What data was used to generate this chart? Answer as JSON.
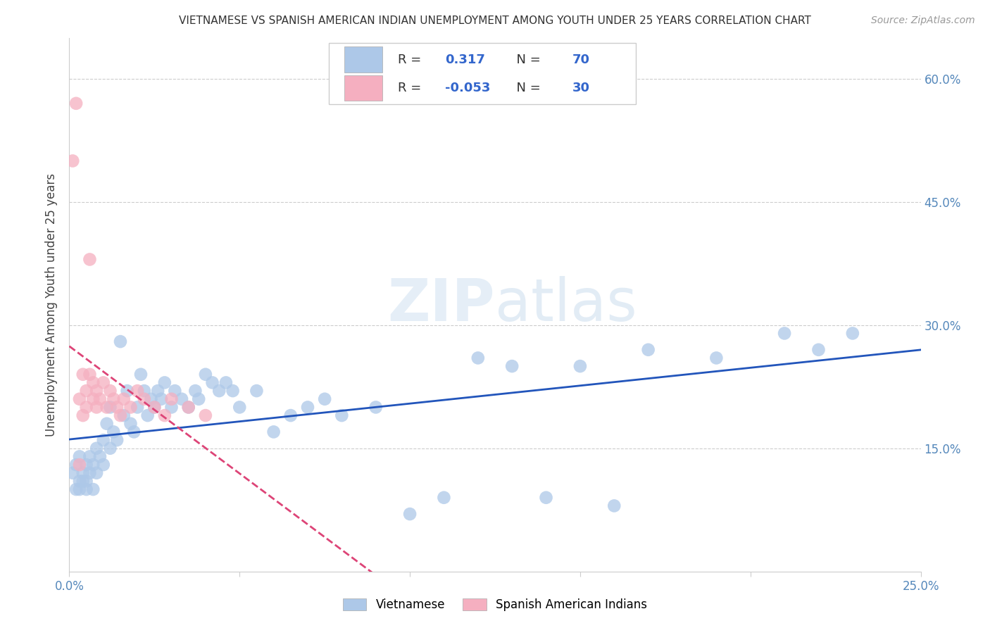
{
  "title": "VIETNAMESE VS SPANISH AMERICAN INDIAN UNEMPLOYMENT AMONG YOUTH UNDER 25 YEARS CORRELATION CHART",
  "source": "Source: ZipAtlas.com",
  "ylabel": "Unemployment Among Youth under 25 years",
  "xlim": [
    0.0,
    0.25
  ],
  "ylim": [
    0.0,
    0.65
  ],
  "blue_R": 0.317,
  "blue_N": 70,
  "pink_R": -0.053,
  "pink_N": 30,
  "blue_color": "#adc8e8",
  "pink_color": "#f5afc0",
  "blue_line_color": "#2255bb",
  "pink_line_color": "#dd4477",
  "watermark_zip": "ZIP",
  "watermark_atlas": "atlas",
  "legend_label_blue": "Vietnamese",
  "legend_label_pink": "Spanish American Indians",
  "blue_x": [
    0.001,
    0.002,
    0.002,
    0.003,
    0.003,
    0.003,
    0.004,
    0.004,
    0.005,
    0.005,
    0.005,
    0.006,
    0.006,
    0.007,
    0.007,
    0.008,
    0.008,
    0.009,
    0.01,
    0.01,
    0.011,
    0.012,
    0.012,
    0.013,
    0.014,
    0.015,
    0.016,
    0.017,
    0.018,
    0.019,
    0.02,
    0.021,
    0.022,
    0.023,
    0.024,
    0.025,
    0.026,
    0.027,
    0.028,
    0.03,
    0.031,
    0.033,
    0.035,
    0.037,
    0.038,
    0.04,
    0.042,
    0.044,
    0.046,
    0.048,
    0.05,
    0.055,
    0.06,
    0.065,
    0.07,
    0.075,
    0.08,
    0.09,
    0.1,
    0.11,
    0.12,
    0.13,
    0.14,
    0.15,
    0.16,
    0.17,
    0.19,
    0.21,
    0.22,
    0.23
  ],
  "blue_y": [
    0.12,
    0.1,
    0.13,
    0.11,
    0.14,
    0.1,
    0.12,
    0.11,
    0.13,
    0.1,
    0.11,
    0.12,
    0.14,
    0.1,
    0.13,
    0.15,
    0.12,
    0.14,
    0.16,
    0.13,
    0.18,
    0.15,
    0.2,
    0.17,
    0.16,
    0.28,
    0.19,
    0.22,
    0.18,
    0.17,
    0.2,
    0.24,
    0.22,
    0.19,
    0.21,
    0.2,
    0.22,
    0.21,
    0.23,
    0.2,
    0.22,
    0.21,
    0.2,
    0.22,
    0.21,
    0.24,
    0.23,
    0.22,
    0.23,
    0.22,
    0.2,
    0.22,
    0.17,
    0.19,
    0.2,
    0.21,
    0.19,
    0.2,
    0.07,
    0.09,
    0.26,
    0.25,
    0.09,
    0.25,
    0.08,
    0.27,
    0.26,
    0.29,
    0.27,
    0.29
  ],
  "pink_x": [
    0.001,
    0.002,
    0.003,
    0.003,
    0.004,
    0.004,
    0.005,
    0.005,
    0.006,
    0.006,
    0.007,
    0.007,
    0.008,
    0.008,
    0.009,
    0.01,
    0.011,
    0.012,
    0.013,
    0.014,
    0.015,
    0.016,
    0.018,
    0.02,
    0.022,
    0.025,
    0.028,
    0.03,
    0.035,
    0.04
  ],
  "pink_y": [
    0.5,
    0.57,
    0.13,
    0.21,
    0.19,
    0.24,
    0.22,
    0.2,
    0.24,
    0.38,
    0.21,
    0.23,
    0.2,
    0.22,
    0.21,
    0.23,
    0.2,
    0.22,
    0.21,
    0.2,
    0.19,
    0.21,
    0.2,
    0.22,
    0.21,
    0.2,
    0.19,
    0.21,
    0.2,
    0.19
  ]
}
